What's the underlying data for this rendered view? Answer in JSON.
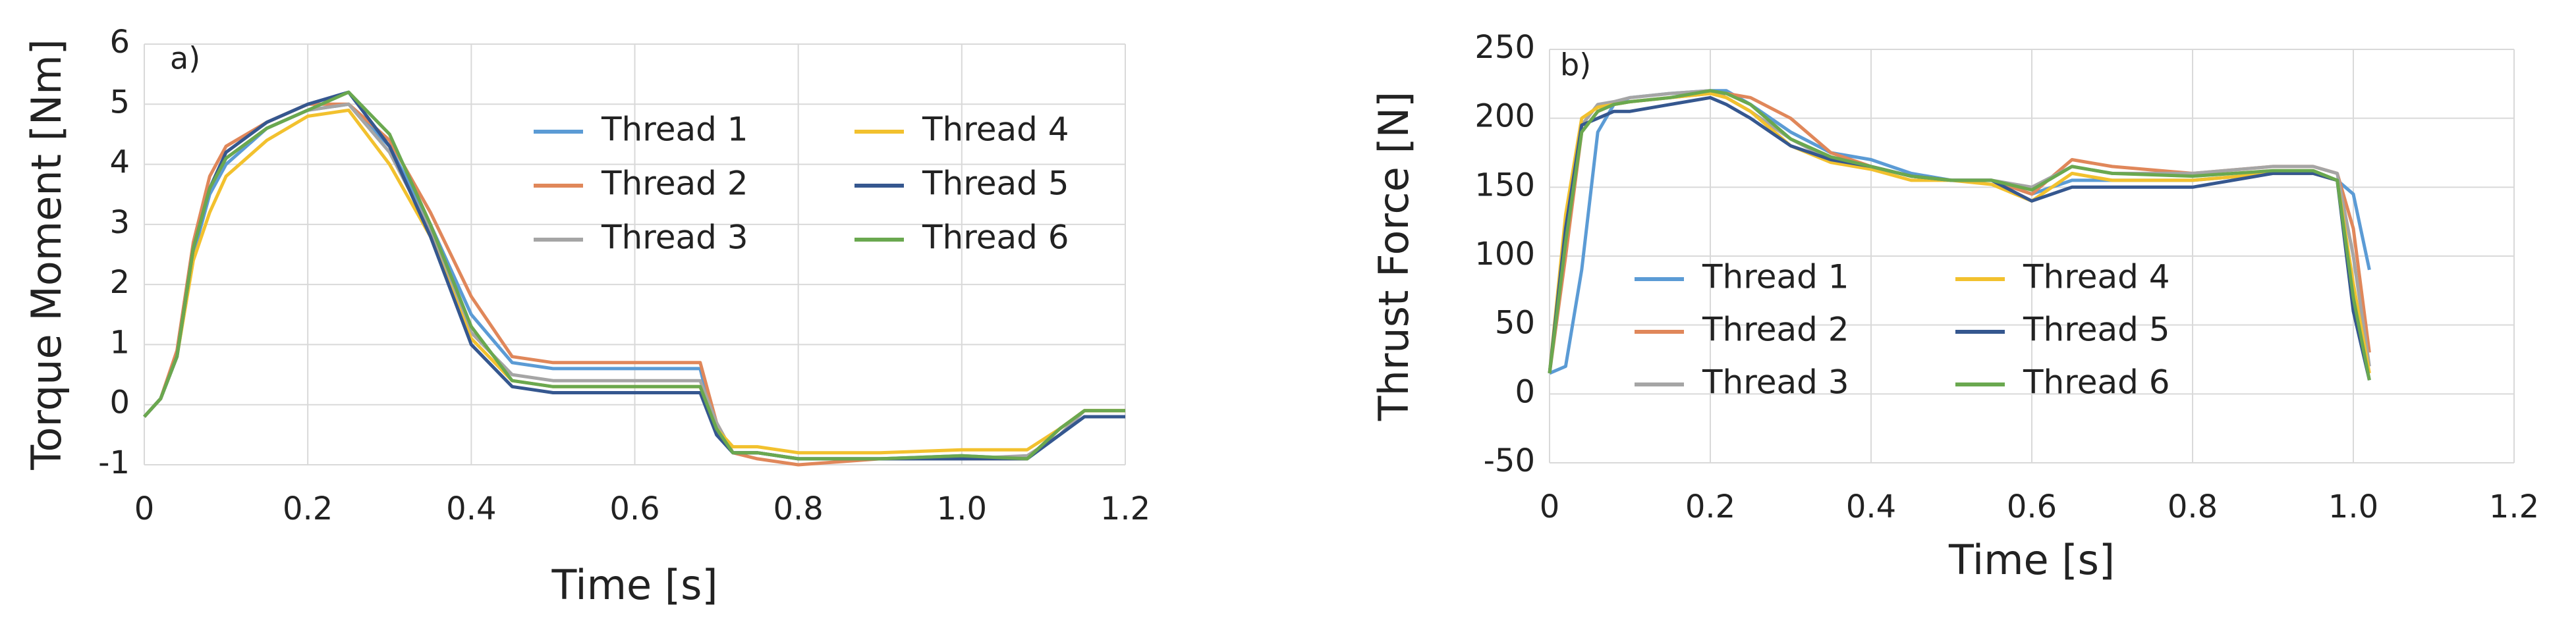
{
  "chart_data": [
    {
      "type": "line",
      "annotation": "a)",
      "x_label": "Time [s]",
      "y_label": "Torque Moment [Nm]",
      "x": [
        0,
        0.02,
        0.04,
        0.06,
        0.08,
        0.1,
        0.15,
        0.2,
        0.25,
        0.3,
        0.35,
        0.4,
        0.45,
        0.5,
        0.6,
        0.68,
        0.7,
        0.72,
        0.75,
        0.8,
        0.9,
        1.0,
        1.08,
        1.12,
        1.15,
        1.2
      ],
      "series": [
        {
          "name": "Thread 1",
          "color": "#5b9bd5",
          "values": [
            -0.2,
            0.1,
            0.8,
            2.5,
            3.5,
            4.0,
            4.6,
            4.9,
            5.0,
            4.3,
            3.0,
            1.5,
            0.7,
            0.6,
            0.6,
            0.6,
            -0.5,
            -0.8,
            -0.8,
            -0.9,
            -0.9,
            -0.85,
            -0.9,
            -0.5,
            -0.2,
            -0.2
          ]
        },
        {
          "name": "Thread 2",
          "color": "#e0875a",
          "values": [
            -0.2,
            0.1,
            0.9,
            2.7,
            3.8,
            4.3,
            4.7,
            5.0,
            5.0,
            4.4,
            3.2,
            1.8,
            0.8,
            0.7,
            0.7,
            0.7,
            -0.3,
            -0.8,
            -0.9,
            -1.0,
            -0.9,
            -0.9,
            -0.9,
            -0.4,
            -0.1,
            -0.1
          ]
        },
        {
          "name": "Thread 3",
          "color": "#a5a5a5",
          "values": [
            -0.2,
            0.1,
            0.8,
            2.6,
            3.6,
            4.1,
            4.6,
            4.9,
            5.0,
            4.2,
            2.9,
            1.2,
            0.5,
            0.4,
            0.4,
            0.4,
            -0.3,
            -0.8,
            -0.8,
            -0.9,
            -0.9,
            -0.9,
            -0.85,
            -0.5,
            -0.1,
            -0.1
          ]
        },
        {
          "name": "Thread 4",
          "color": "#f2c12e",
          "values": [
            -0.2,
            0.1,
            0.8,
            2.4,
            3.2,
            3.8,
            4.4,
            4.8,
            4.9,
            4.0,
            2.8,
            1.1,
            0.4,
            0.3,
            0.3,
            0.3,
            -0.4,
            -0.7,
            -0.7,
            -0.8,
            -0.8,
            -0.75,
            -0.75,
            -0.4,
            -0.1,
            -0.1
          ]
        },
        {
          "name": "Thread 5",
          "color": "#35578f",
          "values": [
            -0.2,
            0.1,
            0.8,
            2.6,
            3.6,
            4.2,
            4.7,
            5.0,
            5.2,
            4.3,
            2.8,
            1.0,
            0.3,
            0.2,
            0.2,
            0.2,
            -0.5,
            -0.8,
            -0.8,
            -0.9,
            -0.9,
            -0.9,
            -0.9,
            -0.5,
            -0.2,
            -0.2
          ]
        },
        {
          "name": "Thread 6",
          "color": "#6aa84f",
          "values": [
            -0.2,
            0.1,
            0.8,
            2.6,
            3.6,
            4.1,
            4.6,
            4.9,
            5.2,
            4.5,
            3.0,
            1.3,
            0.4,
            0.3,
            0.3,
            0.3,
            -0.4,
            -0.8,
            -0.8,
            -0.9,
            -0.9,
            -0.85,
            -0.9,
            -0.4,
            -0.1,
            -0.1
          ]
        }
      ],
      "xlim": [
        0,
        1.2
      ],
      "xticks": [
        0,
        0.2,
        0.4,
        0.6,
        0.8,
        {
          "value": 1,
          "label": "1.0"
        },
        1.2
      ],
      "ylim": [
        -1,
        6
      ],
      "yticks": [
        -1,
        0,
        1,
        2,
        3,
        4,
        5,
        6
      ],
      "grid": true
    },
    {
      "type": "line",
      "annotation": "b)",
      "x_label": "Time [s]",
      "y_label": "Thrust Force [N]",
      "x": [
        0,
        0.02,
        0.04,
        0.06,
        0.08,
        0.1,
        0.15,
        0.2,
        0.22,
        0.25,
        0.3,
        0.35,
        0.4,
        0.45,
        0.5,
        0.55,
        0.6,
        0.65,
        0.7,
        0.8,
        0.9,
        0.95,
        0.98,
        1.0,
        1.02
      ],
      "series": [
        {
          "name": "Thread 1",
          "color": "#5b9bd5",
          "values": [
            15,
            20,
            90,
            190,
            210,
            215,
            218,
            220,
            220,
            210,
            190,
            175,
            170,
            160,
            155,
            155,
            145,
            155,
            155,
            155,
            160,
            160,
            155,
            145,
            90
          ]
        },
        {
          "name": "Thread 2",
          "color": "#e0875a",
          "values": [
            15,
            100,
            190,
            205,
            210,
            212,
            215,
            218,
            218,
            215,
            200,
            175,
            165,
            158,
            155,
            155,
            145,
            170,
            165,
            160,
            165,
            165,
            160,
            120,
            30
          ]
        },
        {
          "name": "Thread 3",
          "color": "#a5a5a5",
          "values": [
            15,
            110,
            195,
            210,
            212,
            215,
            218,
            220,
            215,
            205,
            185,
            170,
            165,
            158,
            155,
            155,
            150,
            165,
            160,
            160,
            165,
            165,
            160,
            100,
            20
          ]
        },
        {
          "name": "Thread 4",
          "color": "#f2c12e",
          "values": [
            15,
            130,
            200,
            208,
            210,
            212,
            215,
            218,
            215,
            205,
            180,
            168,
            163,
            155,
            155,
            152,
            140,
            160,
            155,
            155,
            160,
            160,
            155,
            80,
            15
          ]
        },
        {
          "name": "Thread 5",
          "color": "#35578f",
          "values": [
            15,
            120,
            195,
            200,
            205,
            205,
            210,
            215,
            210,
            200,
            180,
            170,
            165,
            158,
            155,
            155,
            140,
            150,
            150,
            150,
            160,
            160,
            155,
            60,
            10
          ]
        },
        {
          "name": "Thread 6",
          "color": "#6aa84f",
          "values": [
            15,
            110,
            190,
            205,
            210,
            212,
            215,
            220,
            218,
            210,
            185,
            172,
            165,
            158,
            155,
            155,
            148,
            165,
            160,
            158,
            162,
            162,
            155,
            70,
            10
          ]
        }
      ],
      "xlim": [
        0,
        1.2
      ],
      "xticks": [
        0,
        0.2,
        0.4,
        0.6,
        0.8,
        {
          "value": 1,
          "label": "1.0"
        },
        1.2
      ],
      "ylim": [
        -50,
        250
      ],
      "yticks": [
        -50,
        0,
        50,
        100,
        150,
        200,
        250
      ],
      "grid": true
    }
  ]
}
